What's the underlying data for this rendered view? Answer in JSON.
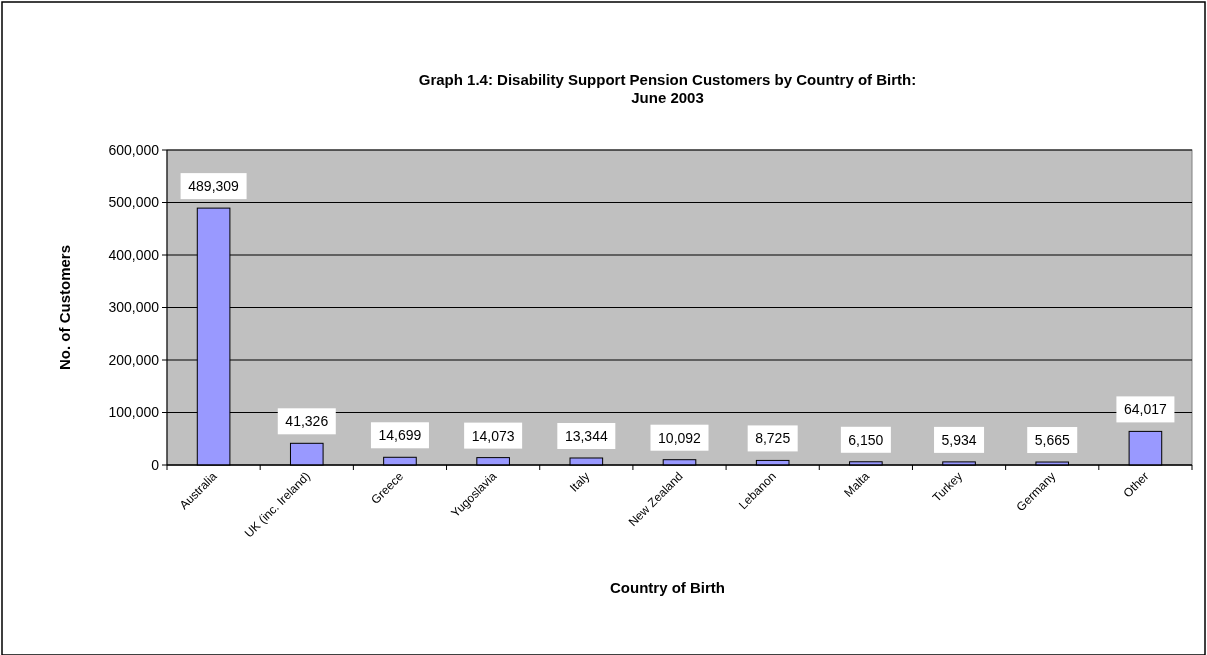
{
  "chart_data": {
    "type": "bar",
    "title": "Graph 1.4: Disability Support Pension Customers by Country of Birth:\nJune 2003",
    "xlabel": "Country of Birth",
    "ylabel": "No. of Customers",
    "categories": [
      "Australia",
      "UK (inc. Ireland)",
      "Greece",
      "Yugoslavia",
      "Italy",
      "New Zealand",
      "Lebanon",
      "Malta",
      "Turkey",
      "Germany",
      "Other"
    ],
    "values": [
      489309,
      41326,
      14699,
      14073,
      13344,
      10092,
      8725,
      6150,
      5934,
      5665,
      64017
    ],
    "value_labels": [
      "489,309",
      "41,326",
      "14,699",
      "14,073",
      "13,344",
      "10,092",
      "8,725",
      "6,150",
      "5,934",
      "5,665",
      "64,017"
    ],
    "color": "#9999ff",
    "ylim": [
      0,
      600000
    ],
    "yticks": [
      {
        "value": 0,
        "label": "0"
      },
      {
        "value": 100000,
        "label": "100,000"
      },
      {
        "value": 200000,
        "label": "200,000"
      },
      {
        "value": 300000,
        "label": "300,000"
      },
      {
        "value": 400000,
        "label": "400,000"
      },
      {
        "value": 500000,
        "label": "500,000"
      },
      {
        "value": 600000,
        "label": "600,000"
      }
    ],
    "grid": "y"
  }
}
